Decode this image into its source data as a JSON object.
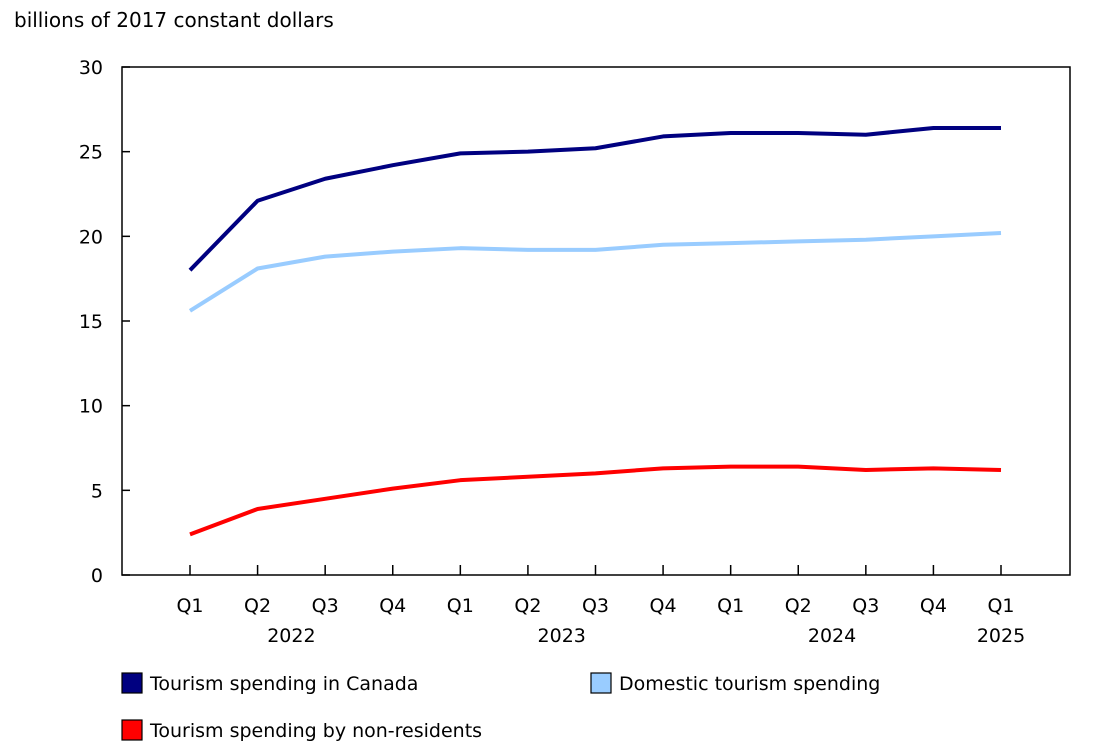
{
  "chart_data": {
    "type": "line",
    "ylabel": "billions of 2017 constant dollars",
    "ylim": [
      0,
      30
    ],
    "yticks": [
      0,
      5,
      10,
      15,
      20,
      25,
      30
    ],
    "grid": false,
    "legend_position": "bottom",
    "categories": [
      "Q1",
      "Q2",
      "Q3",
      "Q4",
      "Q1",
      "Q2",
      "Q3",
      "Q4",
      "Q1",
      "Q2",
      "Q3",
      "Q4",
      "Q1"
    ],
    "year_labels": [
      {
        "label": "2022",
        "index": 1.5
      },
      {
        "label": "2023",
        "index": 5.5
      },
      {
        "label": "2024",
        "index": 9.5
      },
      {
        "label": "2025",
        "index": 12
      }
    ],
    "series": [
      {
        "name": "Tourism spending in Canada",
        "color": "#000080",
        "values": [
          18.0,
          22.1,
          23.4,
          24.2,
          24.9,
          25.0,
          25.2,
          25.9,
          26.1,
          26.1,
          26.0,
          26.4,
          26.4
        ]
      },
      {
        "name": "Domestic tourism spending",
        "color": "#99ccff",
        "values": [
          15.6,
          18.1,
          18.8,
          19.1,
          19.3,
          19.2,
          19.2,
          19.5,
          19.6,
          19.7,
          19.8,
          20.0,
          20.2
        ]
      },
      {
        "name": "Tourism spending by non-residents",
        "color": "#ff0000",
        "values": [
          2.4,
          3.9,
          4.5,
          5.1,
          5.6,
          5.8,
          6.0,
          6.3,
          6.4,
          6.4,
          6.2,
          6.3,
          6.2
        ]
      }
    ]
  }
}
